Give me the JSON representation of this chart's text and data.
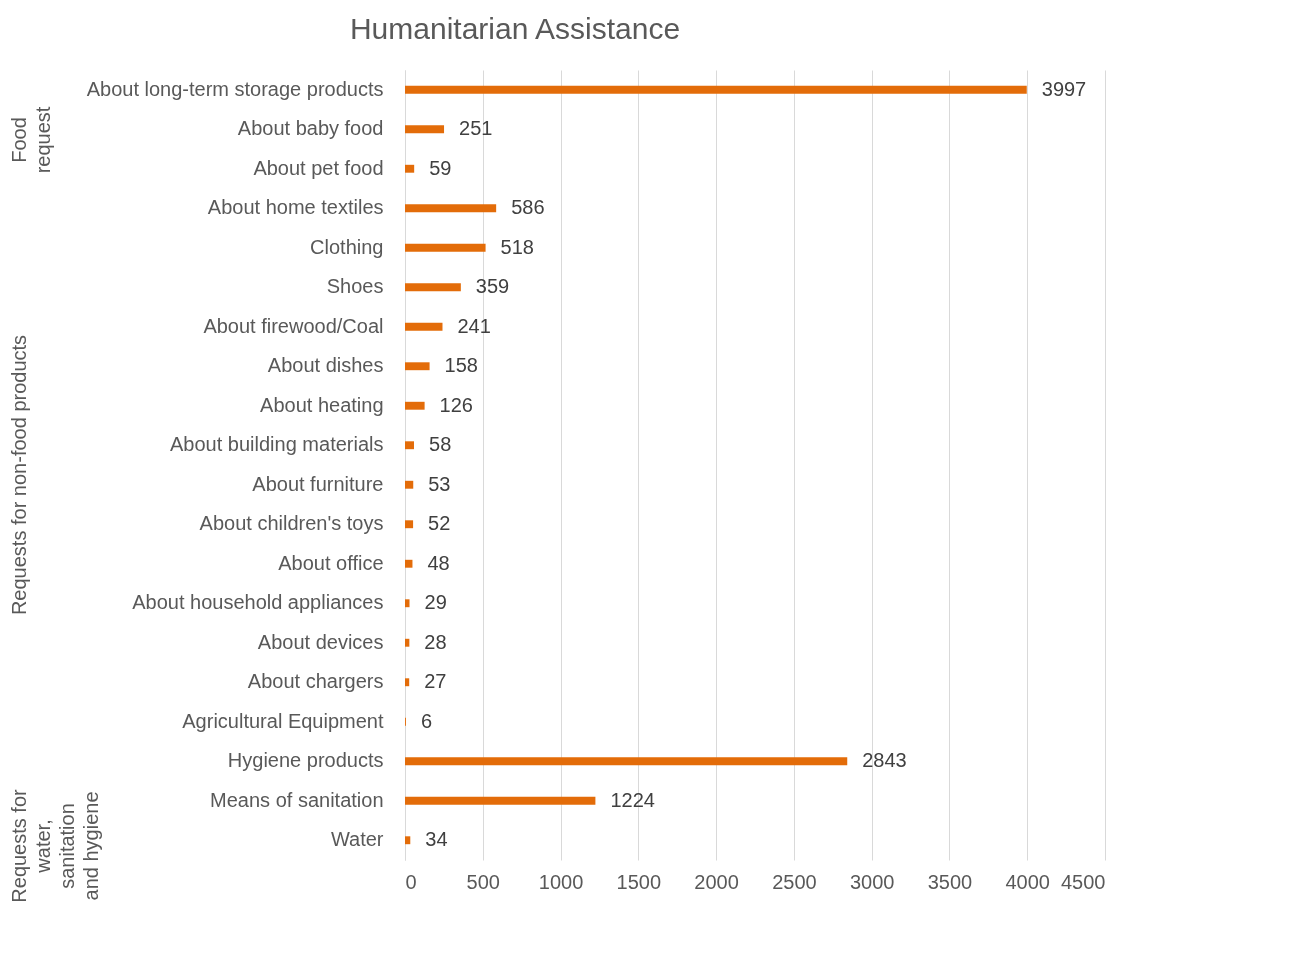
{
  "chart_data": {
    "type": "bar",
    "orientation": "horizontal",
    "title": "Humanitarian Assistance",
    "categories": [
      "About long-term storage products",
      "About baby food",
      "About pet food",
      "About home textiles",
      "Clothing",
      "Shoes",
      "About firewood/Coal",
      "About dishes",
      "About heating",
      "About building materials",
      "About furniture",
      "About children's toys",
      "About office",
      "About household appliances",
      "About devices",
      "About chargers",
      "Agricultural Equipment",
      "Hygiene products",
      "Means of sanitation",
      "Water"
    ],
    "values": [
      3997,
      251,
      59,
      586,
      518,
      359,
      241,
      158,
      126,
      58,
      53,
      52,
      48,
      29,
      28,
      27,
      6,
      2843,
      1224,
      34
    ],
    "color": "#e36c09",
    "xlim": [
      0,
      4500
    ],
    "xticks": [
      0,
      500,
      1000,
      1500,
      2000,
      2500,
      3000,
      3500,
      4000,
      4500
    ],
    "grid": "x",
    "data_labels": true,
    "annotations": [
      "Food request",
      "Requests for non-food products",
      "Requests for water, sanitation and hygiene"
    ]
  }
}
